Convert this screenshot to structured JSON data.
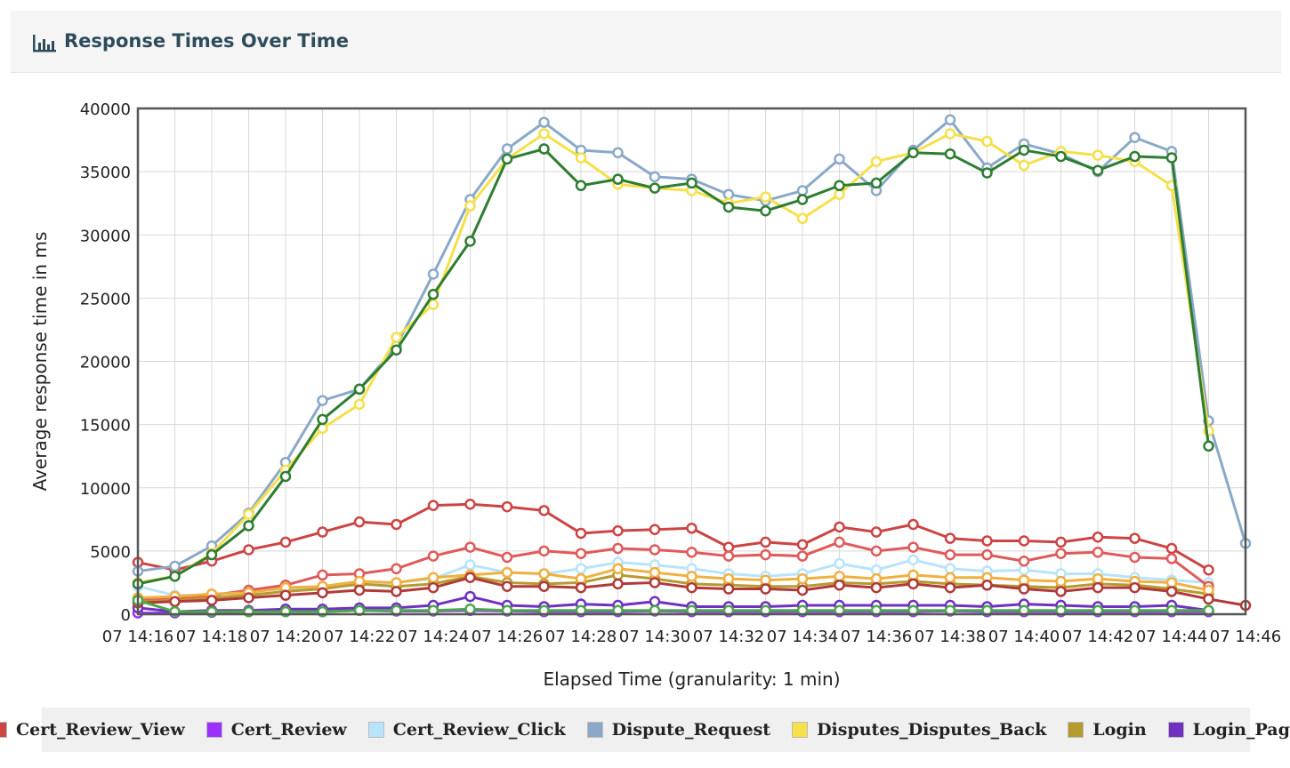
{
  "header": {
    "title": "Response Times Over Time",
    "icon": "bar-chart-icon"
  },
  "chart_data": {
    "type": "line",
    "title": "",
    "xlabel": "Elapsed Time (granularity: 1 min)",
    "ylabel": "Average response time in ms",
    "ylim": [
      0,
      40000
    ],
    "yticks": [
      0,
      5000,
      10000,
      15000,
      20000,
      25000,
      30000,
      35000,
      40000
    ],
    "xlim": [
      "14:16",
      "14:46"
    ],
    "xticks": [
      "07 14:16",
      "07 14:18",
      "07 14:20",
      "07 14:22",
      "07 14:24",
      "07 14:26",
      "07 14:28",
      "07 14:30",
      "07 14:32",
      "07 14:34",
      "07 14:36",
      "07 14:38",
      "07 14:40",
      "07 14:42",
      "07 14:44",
      "07 14:46"
    ],
    "grid": true,
    "legend_position": "bottom",
    "x": [
      "14:16",
      "14:17",
      "14:18",
      "14:19",
      "14:20",
      "14:21",
      "14:22",
      "14:23",
      "14:24",
      "14:25",
      "14:26",
      "14:27",
      "14:28",
      "14:29",
      "14:30",
      "14:31",
      "14:32",
      "14:33",
      "14:34",
      "14:35",
      "14:36",
      "14:37",
      "14:38",
      "14:39",
      "14:40",
      "14:41",
      "14:42",
      "14:43",
      "14:44",
      "14:45",
      "14:46"
    ],
    "series": [
      {
        "name": "Cert_Review_View",
        "color": "#cc4444",
        "legend": true,
        "values": [
          4100,
          3500,
          4200,
          5100,
          5700,
          6500,
          7300,
          7100,
          8600,
          8700,
          8500,
          8200,
          6400,
          6600,
          6700,
          6800,
          5300,
          5700,
          5500,
          6900,
          6500,
          7100,
          6000,
          5800,
          5800,
          5700,
          6100,
          6000,
          5200,
          3500,
          null
        ]
      },
      {
        "name": "Cert_Review",
        "color": "#9b30ff",
        "legend": true,
        "values": [
          100,
          100,
          150,
          200,
          200,
          200,
          300,
          250,
          250,
          300,
          250,
          200,
          200,
          200,
          250,
          200,
          200,
          200,
          200,
          200,
          200,
          200,
          250,
          200,
          200,
          200,
          200,
          200,
          200,
          200,
          null
        ]
      },
      {
        "name": "Cert_Review_Click",
        "color": "#b7e3fb",
        "legend": true,
        "values": [
          2200,
          1500,
          1500,
          1800,
          2000,
          2200,
          2300,
          2500,
          2800,
          3900,
          3300,
          3200,
          3600,
          4100,
          3900,
          3600,
          3200,
          3000,
          3200,
          4000,
          3500,
          4300,
          3600,
          3400,
          3500,
          3200,
          3200,
          2900,
          2700,
          2500,
          null
        ]
      },
      {
        "name": "Dispute_Request",
        "color": "#8aa8c8",
        "legend": true,
        "values": [
          3400,
          3800,
          5400,
          8000,
          12000,
          16900,
          17800,
          21200,
          26900,
          32800,
          36800,
          38900,
          36700,
          36500,
          34600,
          34400,
          33200,
          32700,
          33500,
          36000,
          33500,
          36700,
          39100,
          35300,
          37200,
          36400,
          35000,
          37700,
          36600,
          15300,
          5600
        ]
      },
      {
        "name": "Disputes_Disputes_Back",
        "color": "#f5e04a",
        "legend": true,
        "values": [
          2500,
          3000,
          4800,
          7900,
          11400,
          14700,
          16600,
          21900,
          24500,
          32300,
          36000,
          38000,
          36100,
          34000,
          33700,
          33500,
          32500,
          33000,
          31300,
          33200,
          35800,
          36500,
          38000,
          37400,
          35500,
          36600,
          36300,
          35800,
          33900,
          14500,
          null
        ]
      },
      {
        "name": "Login",
        "color": "#b59a2e",
        "legend": true,
        "values": [
          1000,
          1100,
          1300,
          1500,
          1800,
          2000,
          2400,
          2200,
          2400,
          3000,
          2500,
          2400,
          2500,
          3100,
          2800,
          2400,
          2300,
          2200,
          2200,
          2500,
          2400,
          2600,
          2400,
          2300,
          2200,
          2100,
          2400,
          2300,
          2000,
          1600,
          null
        ]
      },
      {
        "name": "Login_Page",
        "color": "#7030c0",
        "legend": true,
        "values": [
          500,
          200,
          300,
          300,
          400,
          400,
          500,
          500,
          700,
          1400,
          700,
          600,
          800,
          700,
          1000,
          600,
          600,
          600,
          700,
          700,
          700,
          700,
          700,
          600,
          800,
          700,
          600,
          600,
          700,
          300,
          null
        ]
      },
      {
        "name": "",
        "color": "#e05a5a",
        "legend": false,
        "values": [
          1200,
          1300,
          1500,
          1900,
          2300,
          3100,
          3200,
          3600,
          4600,
          5300,
          4500,
          5000,
          4800,
          5200,
          5100,
          4900,
          4600,
          4700,
          4600,
          5700,
          5000,
          5300,
          4700,
          4700,
          4200,
          4800,
          4900,
          4500,
          4400,
          2200,
          null
        ]
      },
      {
        "name": "",
        "color": "#f0b040",
        "legend": false,
        "values": [
          1300,
          1400,
          1600,
          1700,
          2100,
          2200,
          2600,
          2500,
          2900,
          3100,
          3300,
          3200,
          2800,
          3600,
          3300,
          3000,
          2800,
          2700,
          2800,
          3000,
          2800,
          3100,
          2900,
          2900,
          2700,
          2600,
          2800,
          2600,
          2500,
          1900,
          null
        ]
      },
      {
        "name": "",
        "color": "#b03a3a",
        "legend": false,
        "values": [
          900,
          1000,
          1100,
          1300,
          1500,
          1700,
          1900,
          1800,
          2100,
          2900,
          2200,
          2200,
          2100,
          2400,
          2500,
          2100,
          2000,
          2000,
          1900,
          2300,
          2100,
          2400,
          2100,
          2300,
          2000,
          1800,
          2100,
          2100,
          1800,
          1200,
          700
        ]
      },
      {
        "name": "",
        "color": "#4aa84a",
        "legend": false,
        "values": [
          1100,
          200,
          200,
          200,
          200,
          200,
          300,
          300,
          300,
          400,
          300,
          300,
          300,
          300,
          300,
          300,
          300,
          300,
          300,
          300,
          300,
          300,
          300,
          300,
          300,
          300,
          300,
          300,
          300,
          300,
          null
        ]
      },
      {
        "name": "",
        "color": "#2e7d32",
        "legend": false,
        "values": [
          2400,
          3000,
          4700,
          7000,
          10900,
          15400,
          17800,
          20900,
          25300,
          29500,
          36000,
          36800,
          33900,
          34400,
          33700,
          34100,
          32200,
          31900,
          32800,
          33900,
          34100,
          36500,
          36400,
          34900,
          36700,
          36200,
          35100,
          36200,
          36100,
          13300,
          null
        ]
      }
    ]
  }
}
